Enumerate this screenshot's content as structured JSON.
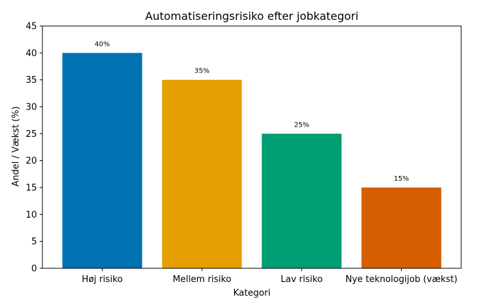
{
  "chart_data": {
    "type": "bar",
    "title": "Automatiseringsrisiko efter jobkategori",
    "xlabel": "Kategori",
    "ylabel": "Andel / Vækst (%)",
    "categories": [
      "Høj risiko",
      "Mellem risiko",
      "Lav risiko",
      "Nye teknologijob (vækst)"
    ],
    "values": [
      40,
      35,
      25,
      15
    ],
    "data_labels": [
      "40%",
      "35%",
      "25%",
      "15%"
    ],
    "colors": [
      "#0072b2",
      "#e69f00",
      "#009e73",
      "#d55e00"
    ],
    "ylim": [
      0,
      45
    ],
    "yticks": [
      0,
      5,
      10,
      15,
      20,
      25,
      30,
      35,
      40,
      45
    ],
    "grid": false,
    "legend": "none"
  }
}
